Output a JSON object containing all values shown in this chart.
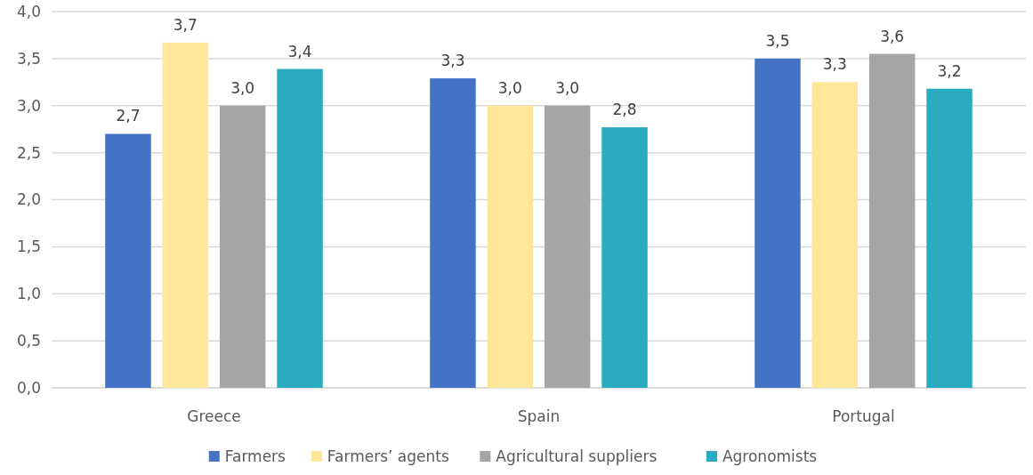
{
  "chart_data": {
    "type": "bar",
    "categories": [
      "Greece",
      "Spain",
      "Portugal"
    ],
    "series": [
      {
        "name": "Farmers",
        "color": "#4472c4",
        "values": [
          2.7,
          3.29,
          3.5
        ],
        "value_labels": [
          "2,7",
          "3,3",
          "3,5"
        ]
      },
      {
        "name": "Farmers’ agents",
        "color": "#ffe699",
        "values": [
          3.67,
          3.0,
          3.25
        ],
        "value_labels": [
          "3,7",
          "3,0",
          "3,3"
        ]
      },
      {
        "name": "Agricultural suppliers",
        "color": "#a5a5a5",
        "values": [
          3.0,
          3.0,
          3.55
        ],
        "value_labels": [
          "3,0",
          "3,0",
          "3,6"
        ]
      },
      {
        "name": "Agronomists",
        "color": "#2aabc0",
        "values": [
          3.39,
          2.77,
          3.18
        ],
        "value_labels": [
          "3,4",
          "2,8",
          "3,2"
        ]
      }
    ],
    "ylim": [
      0,
      4
    ],
    "yticks": [
      {
        "value": 0,
        "label": "0,0"
      },
      {
        "value": 0.5,
        "label": "0,5"
      },
      {
        "value": 1,
        "label": "1,0"
      },
      {
        "value": 1.5,
        "label": "1,5"
      },
      {
        "value": 2,
        "label": "2,0"
      },
      {
        "value": 2.5,
        "label": "2,5"
      },
      {
        "value": 3,
        "label": "3,0"
      },
      {
        "value": 3.5,
        "label": "3,5"
      },
      {
        "value": 4,
        "label": "4,0"
      }
    ],
    "grid": "y",
    "legend": "bottom"
  }
}
